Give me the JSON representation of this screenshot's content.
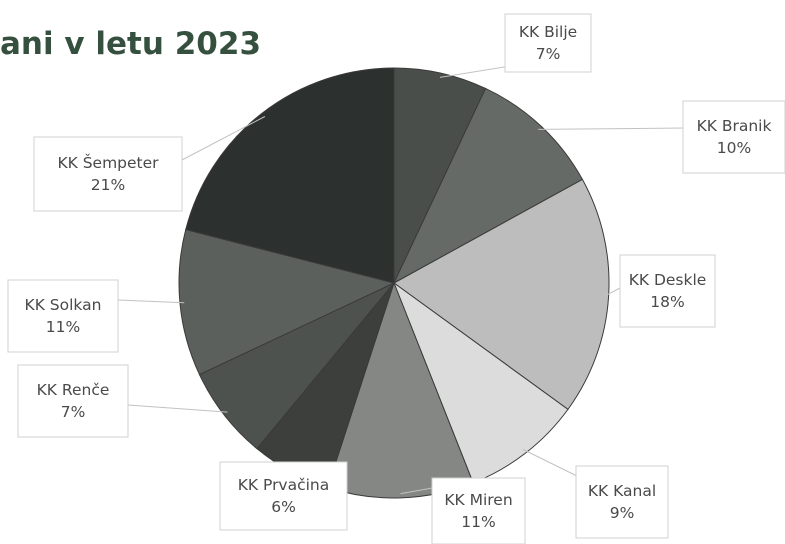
{
  "page": {
    "title": "ani v letu 2023"
  },
  "chart_data": {
    "type": "pie",
    "title": "ani v letu 2023",
    "start_angle_deg": 0,
    "direction": "clockwise",
    "slices": [
      {
        "label": "KK Bilje",
        "value": 7,
        "display": "7%",
        "color": "#4a4e4a"
      },
      {
        "label": "KK Branik",
        "value": 10,
        "display": "10%",
        "color": "#666a66"
      },
      {
        "label": "KK Deskle",
        "value": 18,
        "display": "18%",
        "color": "#bdbdbd"
      },
      {
        "label": "KK Kanal",
        "value": 9,
        "display": "9%",
        "color": "#dcdcdc"
      },
      {
        "label": "KK Miren",
        "value": 11,
        "display": "11%",
        "color": "#858785"
      },
      {
        "label": "KK Prvačina",
        "value": 6,
        "display": "6%",
        "color": "#3c3f3c"
      },
      {
        "label": "KK Renče",
        "value": 7,
        "display": "7%",
        "color": "#4e524e"
      },
      {
        "label": "KK Solkan",
        "value": 11,
        "display": "11%",
        "color": "#5c605c"
      },
      {
        "label": "KK Šempeter",
        "value": 21,
        "display": "21%",
        "color": "#2c302e"
      }
    ]
  }
}
